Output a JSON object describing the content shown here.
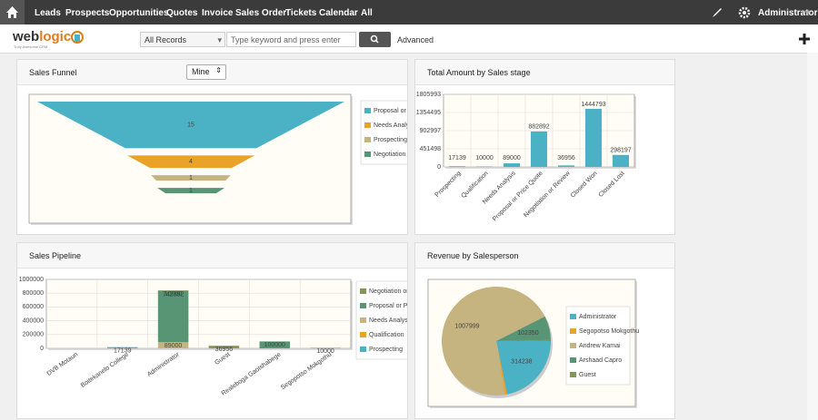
{
  "nav": {
    "items": [
      "Leads",
      "Prospects",
      "Opportunities",
      "Quotes",
      "Invoice",
      "Sales Order",
      "Tickets",
      "Calendar",
      "All"
    ],
    "user": "Administrator"
  },
  "toolbar": {
    "logo_web": "web",
    "logo_logic": "logic",
    "tagline": "Truly Awesome CRM",
    "records_select": "All Records",
    "search_placeholder": "Type keyword and press enter",
    "advanced": "Advanced"
  },
  "chart_data": [
    {
      "type": "funnel",
      "title": "Sales Funnel",
      "filter": "Mine",
      "categories": [
        "Proposal or Pric",
        "Needs Analysis",
        "Prospecting",
        "Negotiation or R"
      ],
      "values": [
        15,
        4,
        1,
        1
      ],
      "colors": [
        "#4bb2c5",
        "#eaa228",
        "#c5b47f",
        "#579575"
      ]
    },
    {
      "type": "bar",
      "title": "Total Amount by Sales stage",
      "categories": [
        "Prospecting",
        "Qualification",
        "Needs Analysis",
        "Proposal or Price Quote",
        "Negotiation or Review",
        "Closed Won",
        "Closed Lost"
      ],
      "values": [
        17139,
        10000,
        89000,
        882892,
        36956,
        1444793,
        298197
      ],
      "color": "#4bb2c5",
      "ylim": [
        0,
        1805993
      ],
      "yticks": [
        0,
        451498,
        902997,
        1354495,
        1805993
      ],
      "grid": true
    },
    {
      "type": "stacked_bar",
      "title": "Sales Pipeline",
      "categories": [
        "DVB Motaun",
        "Boitekanelo College",
        "Administrator",
        "Guest",
        "Realeboga Gaotshabege",
        "Segopotso Mokgothu"
      ],
      "series": [
        {
          "name": "Negotiation or Re",
          "color": "#839557",
          "values": [
            null,
            null,
            10000,
            36956,
            null,
            null
          ]
        },
        {
          "name": "Proposal or Price",
          "color": "#579575",
          "values": [
            null,
            null,
            742892,
            null,
            100000,
            null
          ]
        },
        {
          "name": "Needs Analysis",
          "color": "#c5b47f",
          "values": [
            null,
            null,
            89000,
            null,
            null,
            null
          ]
        },
        {
          "name": "Qualification",
          "color": "#eaa228",
          "values": [
            null,
            null,
            null,
            null,
            null,
            10000
          ]
        },
        {
          "name": "Prospecting",
          "color": "#4bb2c5",
          "values": [
            null,
            17139,
            null,
            null,
            null,
            null
          ]
        }
      ],
      "ylim": [
        0,
        1000000
      ],
      "yticks": [
        0,
        200000,
        400000,
        600000,
        800000,
        1000000
      ],
      "grid": true
    },
    {
      "type": "pie",
      "title": "Revenue by Salesperson",
      "categories": [
        "Administrator",
        "Segopotso Mokgothu",
        "Andrew Kamai",
        "Arshaad Capro",
        "Guest"
      ],
      "values": [
        314238,
        10000,
        1007999,
        102350,
        5000
      ],
      "colors": [
        "#4bb2c5",
        "#eaa228",
        "#c5b47f",
        "#579575",
        "#839557"
      ]
    }
  ]
}
